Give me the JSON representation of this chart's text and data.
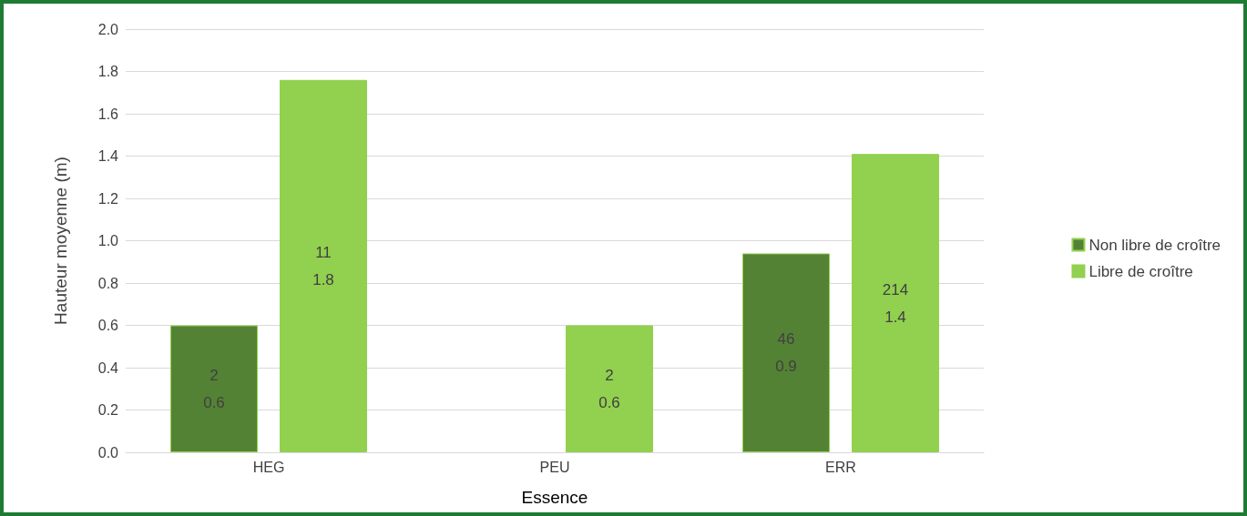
{
  "chart_data": {
    "type": "bar",
    "xlabel": "Essence",
    "ylabel": "Hauteur moyenne (m)",
    "categories": [
      "HEG",
      "PEU",
      "ERR"
    ],
    "series": [
      {
        "name": "Non libre de croître",
        "color": "#548235",
        "values": [
          0.6,
          null,
          0.94
        ],
        "value_labels": [
          "2\n0.6",
          null,
          "46\n0.9"
        ]
      },
      {
        "name": "Libre de croître",
        "color": "#92d050",
        "values": [
          1.76,
          0.6,
          1.41
        ],
        "value_labels": [
          "11\n1.8",
          "2\n0.6",
          "214\n1.4"
        ]
      }
    ],
    "ylim": [
      0,
      2
    ],
    "yticks": [
      "0.0",
      "0.2",
      "0.4",
      "0.6",
      "0.8",
      "1.0",
      "1.2",
      "1.4",
      "1.6",
      "1.8",
      "2.0"
    ],
    "grid": "y",
    "legend": "right"
  }
}
